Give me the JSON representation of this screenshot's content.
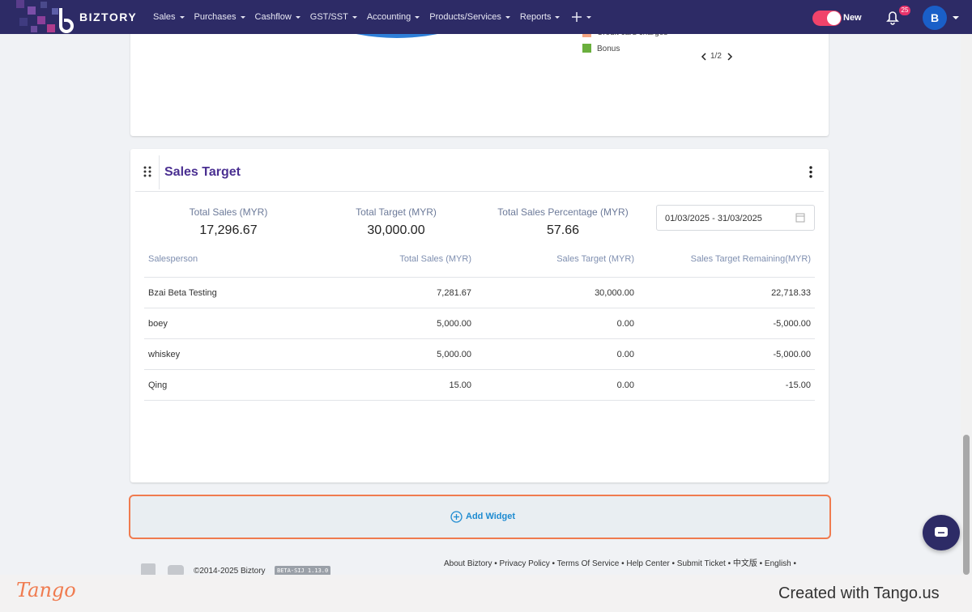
{
  "navbar": {
    "brand": "BIZTORY",
    "menu": [
      "Sales",
      "Purchases",
      "Cashflow",
      "GST/SST",
      "Accounting",
      "Products/Services",
      "Reports"
    ],
    "toggle_label": "New",
    "notification_count": "25",
    "avatar": "B"
  },
  "top_widget": {
    "legend": [
      "Credit card charges",
      "Bonus"
    ],
    "pager": "1/2"
  },
  "sales_target": {
    "title": "Sales Target",
    "stats": [
      {
        "label": "Total Sales (MYR)",
        "value": "17,296.67"
      },
      {
        "label": "Total Target (MYR)",
        "value": "30,000.00"
      },
      {
        "label": "Total Sales Percentage (MYR)",
        "value": "57.66"
      }
    ],
    "date_range": "01/03/2025 - 31/03/2025",
    "table": {
      "headers": [
        "Salesperson",
        "Total Sales (MYR)",
        "Sales Target (MYR)",
        "Sales Target Remaining(MYR)"
      ],
      "rows": [
        [
          "Bzai Beta Testing",
          "7,281.67",
          "30,000.00",
          "22,718.33"
        ],
        [
          "boey",
          "5,000.00",
          "0.00",
          "-5,000.00"
        ],
        [
          "whiskey",
          "5,000.00",
          "0.00",
          "-5,000.00"
        ],
        [
          "Qing",
          "15.00",
          "0.00",
          "-15.00"
        ]
      ]
    }
  },
  "add_widget": "Add Widget",
  "footer": {
    "copyright": "©2014-2025 Biztory",
    "version": "BETA-SIJ 1.13.0",
    "links": "About Biztory • Privacy Policy • Terms Of Service • Help Center • Submit Ticket • 中文版 • English •"
  },
  "tango": {
    "logo": "Tango",
    "credit": "Created with Tango.us"
  }
}
